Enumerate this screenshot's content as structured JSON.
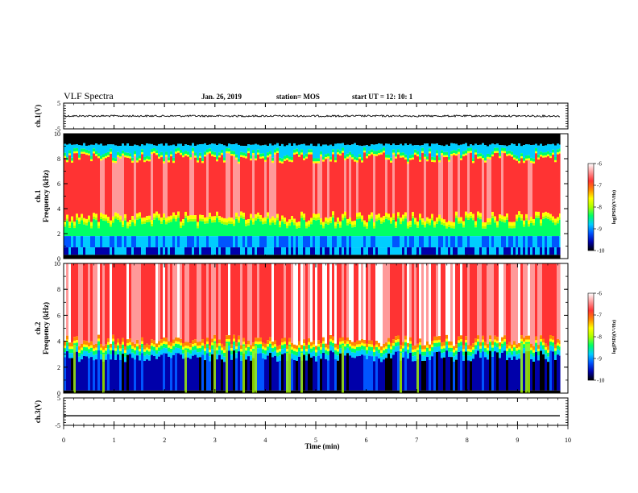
{
  "header": {
    "title": "VLF Spectra",
    "date": "Jan. 26, 2019",
    "station": "station= MOS",
    "start": "start UT =  12: 10: 1"
  },
  "colors": {
    "scale": [
      "#000000",
      "#0000aa",
      "#0055ff",
      "#00ccff",
      "#00ff66",
      "#aaff00",
      "#ffff00",
      "#ff8800",
      "#ff3333",
      "#ff9999",
      "#ffffff"
    ]
  },
  "chart_data": [
    {
      "type": "line",
      "ylabel": "ch.1(V)",
      "ylim": [
        -5,
        5
      ],
      "yticks": [
        "5",
        "-5"
      ],
      "trace_level": 0
    },
    {
      "type": "heatmap",
      "ylabel": "ch.1\nFrequency (kHz)",
      "ylim": [
        0,
        10
      ],
      "yticks": [
        "0",
        "2",
        "4",
        "6",
        "8",
        "10"
      ],
      "colorbar": {
        "label": "log(PSD)(V²/Hz)",
        "ticks": [
          "-6",
          "-7",
          "-8",
          "-9",
          "-10"
        ],
        "range": [
          -10,
          -6
        ]
      }
    },
    {
      "type": "heatmap",
      "ylabel": "ch.2\nFrequency (kHz)",
      "ylim": [
        0,
        10
      ],
      "yticks": [
        "0",
        "2",
        "4",
        "6",
        "8",
        "10"
      ],
      "colorbar": {
        "label": "log(PSD)(V²/Hz)",
        "ticks": [
          "-6",
          "-7",
          "-8",
          "-9",
          "-10"
        ],
        "range": [
          -10,
          -6
        ]
      }
    },
    {
      "type": "line",
      "ylabel": "ch.3(V)",
      "ylim": [
        -5,
        5
      ],
      "yticks": [
        "5",
        "-5"
      ],
      "trace_level": -1.5
    }
  ],
  "xaxis": {
    "label": "Time (min)",
    "xlim": [
      0,
      10
    ],
    "ticks": [
      "0",
      "1",
      "2",
      "3",
      "4",
      "5",
      "6",
      "7",
      "8",
      "9",
      "10"
    ],
    "data_end": 9.85
  }
}
